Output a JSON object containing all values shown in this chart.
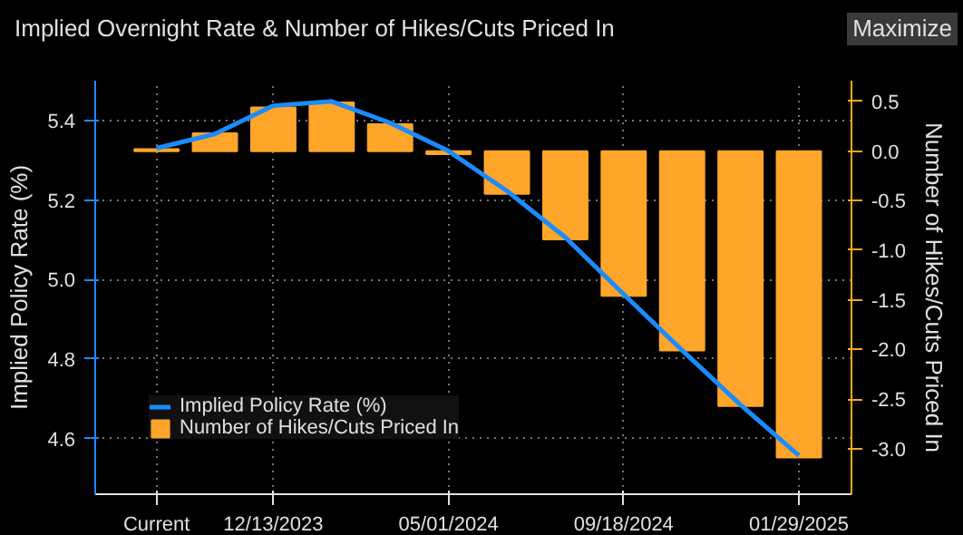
{
  "chart_data": {
    "type": "bar",
    "title": "Implied Overnight Rate & Number of Hikes/Cuts Priced In",
    "annotations": [
      "Maximize"
    ],
    "xlabel": null,
    "ylabel": "Implied Policy Rate (%)",
    "y2label": "Number of Hikes/Cuts Priced In",
    "categories": [
      "Current",
      null,
      "12/13/2023",
      null,
      null,
      "05/01/2024",
      null,
      null,
      "09/18/2024",
      null,
      null,
      "01/29/2025"
    ],
    "series": [
      {
        "name": "Implied Policy Rate (%)",
        "type": "line",
        "color": "#1a8cff",
        "values": [
          5.33,
          5.366,
          5.437,
          5.448,
          5.394,
          5.323,
          5.223,
          5.106,
          4.963,
          4.822,
          4.685,
          4.557
        ]
      },
      {
        "name": "Number of Hikes/Cuts Priced In",
        "axis": "y2",
        "color": "#ffa52a",
        "values": [
          0.02,
          0.18,
          0.44,
          0.49,
          0.27,
          -0.03,
          -0.43,
          -0.89,
          -1.46,
          -2.01,
          -2.57,
          -3.09
        ]
      }
    ],
    "ylim": [
      4.46,
      5.5
    ],
    "yticks": [
      {
        "value": 4.6,
        "label": "4.6"
      },
      {
        "value": 4.8,
        "label": "4.8"
      },
      {
        "value": 5.0,
        "label": "5.0"
      },
      {
        "value": 5.2,
        "label": "5.2"
      },
      {
        "value": 5.4,
        "label": "5.4"
      }
    ],
    "y2lim": [
      -3.46,
      0.71
    ],
    "y2ticks": [
      {
        "value": -3.0,
        "label": "-3.0"
      },
      {
        "value": -2.5,
        "label": "-2.5"
      },
      {
        "value": -2.0,
        "label": "-2.0"
      },
      {
        "value": -1.5,
        "label": "-1.5"
      },
      {
        "value": -1.0,
        "label": "-1.0"
      },
      {
        "value": -0.5,
        "label": "-0.5"
      },
      {
        "value": 0.0,
        "label": "0.0"
      },
      {
        "value": 0.5,
        "label": "0.5"
      }
    ],
    "grid": true,
    "legend": "bottom left"
  }
}
